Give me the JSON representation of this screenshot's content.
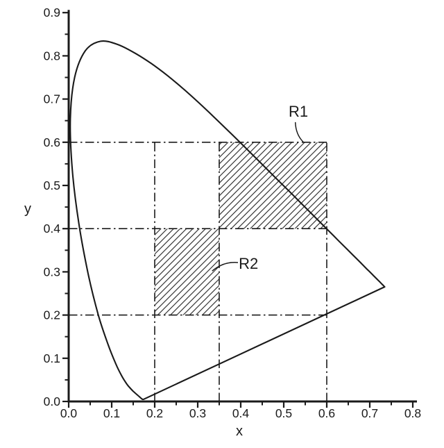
{
  "page": {
    "background": "#ffffff",
    "ink": "#1a1a1a"
  },
  "chart_data": {
    "type": "line",
    "title": "",
    "xlabel": "x",
    "ylabel": "y",
    "xlim": [
      0.0,
      0.8
    ],
    "ylim": [
      0.0,
      0.9
    ],
    "grid": "off",
    "legend": "none",
    "x_tick_labels": [
      "0.0",
      "0.1",
      "0.2",
      "0.3",
      "0.4",
      "0.5",
      "0.6",
      "0.7",
      "0.8"
    ],
    "y_tick_labels": [
      "0.0",
      "0.1",
      "0.2",
      "0.3",
      "0.4",
      "0.5",
      "0.6",
      "0.7",
      "0.8",
      "0.9"
    ],
    "minor_tick_step": 0.05,
    "series": [
      {
        "name": "spectral-locus-outline",
        "closed_by_straight_line": true,
        "points": [
          [
            0.1741,
            0.005
          ],
          [
            0.1733,
            0.0048
          ],
          [
            0.1726,
            0.0048
          ],
          [
            0.1714,
            0.0051
          ],
          [
            0.1689,
            0.0069
          ],
          [
            0.1644,
            0.0109
          ],
          [
            0.1566,
            0.0177
          ],
          [
            0.151,
            0.0227
          ],
          [
            0.144,
            0.0297
          ],
          [
            0.1355,
            0.0399
          ],
          [
            0.1241,
            0.0578
          ],
          [
            0.1096,
            0.0868
          ],
          [
            0.0913,
            0.1327
          ],
          [
            0.0687,
            0.2007
          ],
          [
            0.0454,
            0.295
          ],
          [
            0.0235,
            0.4127
          ],
          [
            0.0082,
            0.5384
          ],
          [
            0.0039,
            0.6548
          ],
          [
            0.0139,
            0.7502
          ],
          [
            0.0389,
            0.812
          ],
          [
            0.0743,
            0.8338
          ],
          [
            0.1142,
            0.8262
          ],
          [
            0.1547,
            0.8059
          ],
          [
            0.1929,
            0.7816
          ],
          [
            0.2296,
            0.7543
          ],
          [
            0.2658,
            0.7243
          ],
          [
            0.3016,
            0.6923
          ],
          [
            0.3373,
            0.6589
          ],
          [
            0.3731,
            0.6245
          ],
          [
            0.4087,
            0.5896
          ],
          [
            0.4441,
            0.5547
          ],
          [
            0.4784,
            0.5202
          ],
          [
            0.5125,
            0.4866
          ],
          [
            0.5448,
            0.4544
          ],
          [
            0.5752,
            0.4242
          ],
          [
            0.6029,
            0.3965
          ],
          [
            0.627,
            0.3725
          ],
          [
            0.6482,
            0.3514
          ],
          [
            0.6658,
            0.334
          ],
          [
            0.6801,
            0.3197
          ],
          [
            0.6915,
            0.3083
          ],
          [
            0.7079,
            0.292
          ],
          [
            0.719,
            0.2809
          ],
          [
            0.726,
            0.274
          ],
          [
            0.73,
            0.27
          ],
          [
            0.7334,
            0.2666
          ],
          [
            0.7347,
            0.2653
          ]
        ]
      }
    ],
    "guide_lines": {
      "style": "dash-dot",
      "horizontal": [
        {
          "y": 0.2,
          "x0": 0.0,
          "x1": 0.6
        },
        {
          "y": 0.4,
          "x0": 0.0,
          "x1": 0.6
        },
        {
          "y": 0.6,
          "x0": 0.0,
          "x1": 0.6
        }
      ],
      "vertical": [
        {
          "x": 0.2,
          "y0": 0.0,
          "y1": 0.6
        },
        {
          "x": 0.35,
          "y0": 0.0,
          "y1": 0.6
        },
        {
          "x": 0.6,
          "y0": 0.0,
          "y1": 0.6
        }
      ]
    },
    "regions": [
      {
        "name": "R1",
        "x0": 0.35,
        "x1": 0.6,
        "y0": 0.4,
        "y1": 0.6,
        "fill": "diagonal-hatch"
      },
      {
        "name": "R2",
        "x0": 0.2,
        "x1": 0.35,
        "y0": 0.2,
        "y1": 0.4,
        "fill": "diagonal-hatch"
      }
    ],
    "annotations": [
      {
        "text": "R1",
        "label_pos": [
          0.534,
          0.672
        ],
        "leader": [
          [
            0.527,
            0.6465
          ],
          [
            0.528,
            0.6175
          ],
          [
            0.5455,
            0.6005
          ]
        ]
      },
      {
        "text": "R2",
        "label_pos": [
          0.418,
          0.32
        ],
        "leader": [
          [
            0.3935,
            0.3215
          ],
          [
            0.36,
            0.3245
          ],
          [
            0.3335,
            0.302
          ]
        ]
      }
    ],
    "ink_color": "#1a1a1a"
  }
}
